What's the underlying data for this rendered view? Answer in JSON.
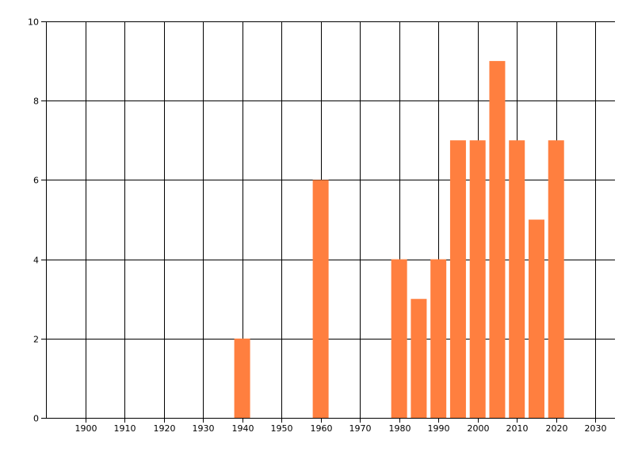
{
  "chart_data": {
    "type": "bar",
    "title": "",
    "xlabel": "",
    "ylabel": "",
    "x": [
      1940,
      1960,
      1980,
      1985,
      1990,
      1995,
      2000,
      2005,
      2010,
      2015,
      2020
    ],
    "values": [
      2,
      6,
      4,
      3,
      4,
      7,
      7,
      9,
      7,
      5,
      7
    ],
    "xlim": [
      1890,
      2035
    ],
    "ylim": [
      0,
      10
    ],
    "xticks": [
      "1900",
      "1910",
      "1920",
      "1930",
      "1940",
      "1950",
      "1960",
      "1970",
      "1980",
      "1990",
      "2000",
      "2010",
      "2020",
      "2030"
    ],
    "yticks": [
      "0",
      "2",
      "4",
      "6",
      "8",
      "10"
    ],
    "grid": true,
    "bar_color": "#FF7F3F"
  }
}
